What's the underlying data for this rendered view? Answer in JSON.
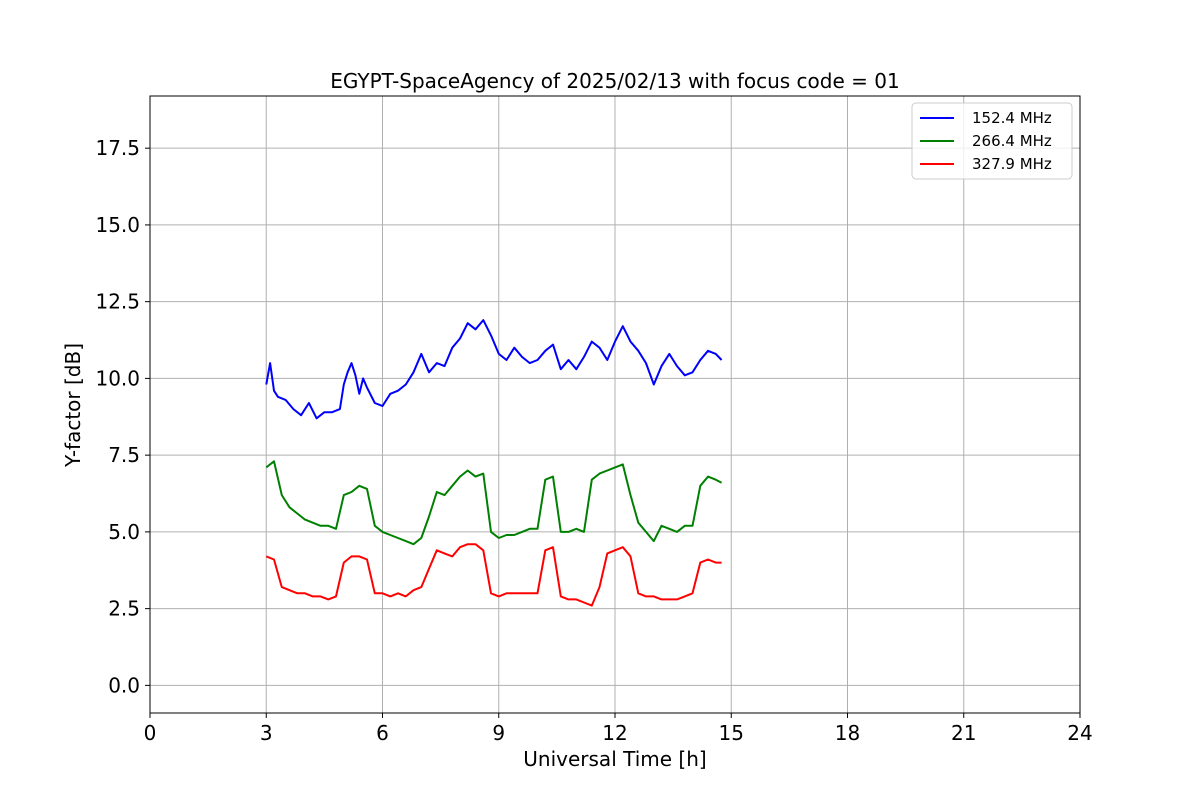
{
  "chart_data": {
    "type": "line",
    "title": "EGYPT-SpaceAgency of 2025/02/13 with focus code = 01",
    "xlabel": "Universal Time [h]",
    "ylabel": "Y-factor [dB]",
    "xlim": [
      0,
      24
    ],
    "ylim": [
      -0.9,
      19.2
    ],
    "xticks": [
      0,
      3,
      6,
      9,
      12,
      15,
      18,
      21,
      24
    ],
    "yticks": [
      0.0,
      2.5,
      5.0,
      7.5,
      10.0,
      12.5,
      15.0,
      17.5
    ],
    "ytick_labels": [
      "0.0",
      "2.5",
      "5.0",
      "7.5",
      "10.0",
      "12.5",
      "15.0",
      "17.5"
    ],
    "grid": true,
    "legend_position": "top-right",
    "series": [
      {
        "name": "152.4 MHz",
        "color": "#0000ff",
        "x": [
          3.0,
          3.1,
          3.2,
          3.3,
          3.5,
          3.7,
          3.9,
          4.1,
          4.3,
          4.5,
          4.7,
          4.9,
          5.0,
          5.1,
          5.2,
          5.3,
          5.4,
          5.5,
          5.6,
          5.8,
          6.0,
          6.2,
          6.4,
          6.6,
          6.8,
          7.0,
          7.2,
          7.4,
          7.6,
          7.8,
          8.0,
          8.2,
          8.4,
          8.6,
          8.8,
          9.0,
          9.2,
          9.4,
          9.6,
          9.8,
          10.0,
          10.2,
          10.4,
          10.6,
          10.8,
          11.0,
          11.2,
          11.4,
          11.6,
          11.8,
          12.0,
          12.2,
          12.4,
          12.6,
          12.8,
          13.0,
          13.2,
          13.4,
          13.6,
          13.8,
          14.0,
          14.2,
          14.4,
          14.6,
          14.75
        ],
        "y": [
          9.8,
          10.5,
          9.6,
          9.4,
          9.3,
          9.0,
          8.8,
          9.2,
          8.7,
          8.9,
          8.9,
          9.0,
          9.8,
          10.2,
          10.5,
          10.1,
          9.5,
          10.0,
          9.7,
          9.2,
          9.1,
          9.5,
          9.6,
          9.8,
          10.2,
          10.8,
          10.2,
          10.5,
          10.4,
          11.0,
          11.3,
          11.8,
          11.6,
          11.9,
          11.4,
          10.8,
          10.6,
          11.0,
          10.7,
          10.5,
          10.6,
          10.9,
          11.1,
          10.3,
          10.6,
          10.3,
          10.7,
          11.2,
          11.0,
          10.6,
          11.2,
          11.7,
          11.2,
          10.9,
          10.5,
          9.8,
          10.4,
          10.8,
          10.4,
          10.1,
          10.2,
          10.6,
          10.9,
          10.8,
          10.6
        ]
      },
      {
        "name": "266.4 MHz",
        "color": "#008000",
        "x": [
          3.0,
          3.2,
          3.4,
          3.6,
          3.8,
          4.0,
          4.2,
          4.4,
          4.6,
          4.8,
          5.0,
          5.2,
          5.4,
          5.6,
          5.8,
          6.0,
          6.2,
          6.4,
          6.6,
          6.8,
          7.0,
          7.2,
          7.4,
          7.6,
          7.8,
          8.0,
          8.2,
          8.4,
          8.6,
          8.8,
          9.0,
          9.2,
          9.4,
          9.6,
          9.8,
          10.0,
          10.2,
          10.4,
          10.6,
          10.8,
          11.0,
          11.2,
          11.4,
          11.6,
          11.8,
          12.0,
          12.2,
          12.4,
          12.6,
          12.8,
          13.0,
          13.2,
          13.4,
          13.6,
          13.8,
          14.0,
          14.2,
          14.4,
          14.6,
          14.75
        ],
        "y": [
          7.1,
          7.3,
          6.2,
          5.8,
          5.6,
          5.4,
          5.3,
          5.2,
          5.2,
          5.1,
          6.2,
          6.3,
          6.5,
          6.4,
          5.2,
          5.0,
          4.9,
          4.8,
          4.7,
          4.6,
          4.8,
          5.5,
          6.3,
          6.2,
          6.5,
          6.8,
          7.0,
          6.8,
          6.9,
          5.0,
          4.8,
          4.9,
          4.9,
          5.0,
          5.1,
          5.1,
          6.7,
          6.8,
          5.0,
          5.0,
          5.1,
          5.0,
          6.7,
          6.9,
          7.0,
          7.1,
          7.2,
          6.2,
          5.3,
          5.0,
          4.7,
          5.2,
          5.1,
          5.0,
          5.2,
          5.2,
          6.5,
          6.8,
          6.7,
          6.6
        ]
      },
      {
        "name": "327.9 MHz",
        "color": "#ff0000",
        "x": [
          3.0,
          3.2,
          3.4,
          3.6,
          3.8,
          4.0,
          4.2,
          4.4,
          4.6,
          4.8,
          5.0,
          5.2,
          5.4,
          5.6,
          5.8,
          6.0,
          6.2,
          6.4,
          6.6,
          6.8,
          7.0,
          7.2,
          7.4,
          7.6,
          7.8,
          8.0,
          8.2,
          8.4,
          8.6,
          8.8,
          9.0,
          9.2,
          9.4,
          9.6,
          9.8,
          10.0,
          10.2,
          10.4,
          10.6,
          10.8,
          11.0,
          11.2,
          11.4,
          11.6,
          11.8,
          12.0,
          12.2,
          12.4,
          12.6,
          12.8,
          13.0,
          13.2,
          13.4,
          13.6,
          13.8,
          14.0,
          14.2,
          14.4,
          14.6,
          14.75
        ],
        "y": [
          4.2,
          4.1,
          3.2,
          3.1,
          3.0,
          3.0,
          2.9,
          2.9,
          2.8,
          2.9,
          4.0,
          4.2,
          4.2,
          4.1,
          3.0,
          3.0,
          2.9,
          3.0,
          2.9,
          3.1,
          3.2,
          3.8,
          4.4,
          4.3,
          4.2,
          4.5,
          4.6,
          4.6,
          4.4,
          3.0,
          2.9,
          3.0,
          3.0,
          3.0,
          3.0,
          3.0,
          4.4,
          4.5,
          2.9,
          2.8,
          2.8,
          2.7,
          2.6,
          3.2,
          4.3,
          4.4,
          4.5,
          4.2,
          3.0,
          2.9,
          2.9,
          2.8,
          2.8,
          2.8,
          2.9,
          3.0,
          4.0,
          4.1,
          4.0,
          4.0
        ]
      }
    ]
  }
}
